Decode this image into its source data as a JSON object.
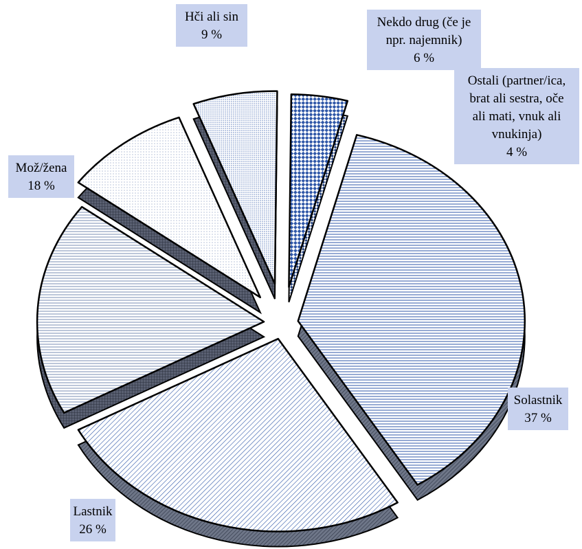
{
  "chart_data": {
    "type": "pie",
    "title": "",
    "style": "3d-exploded",
    "slices": [
      {
        "label": "Solastnik",
        "value": 37,
        "display": "37 %"
      },
      {
        "label": "Lastnik",
        "value": 26,
        "display": "26 %"
      },
      {
        "label": "Mož/žena",
        "value": 18,
        "display": "18 %"
      },
      {
        "label": "Hči ali sin",
        "value": 9,
        "display": "9 %"
      },
      {
        "label": "Nekdo drug (če je npr. najemnik)",
        "value": 6,
        "display": "6 %"
      },
      {
        "label": "Ostali (partner/ica, brat ali sestra, oče ali mati, vnuk ali vnukinja)",
        "value": 4,
        "display": "4 %"
      }
    ],
    "label_box_color": "#c8d2ee",
    "edge_color": "#000000"
  }
}
